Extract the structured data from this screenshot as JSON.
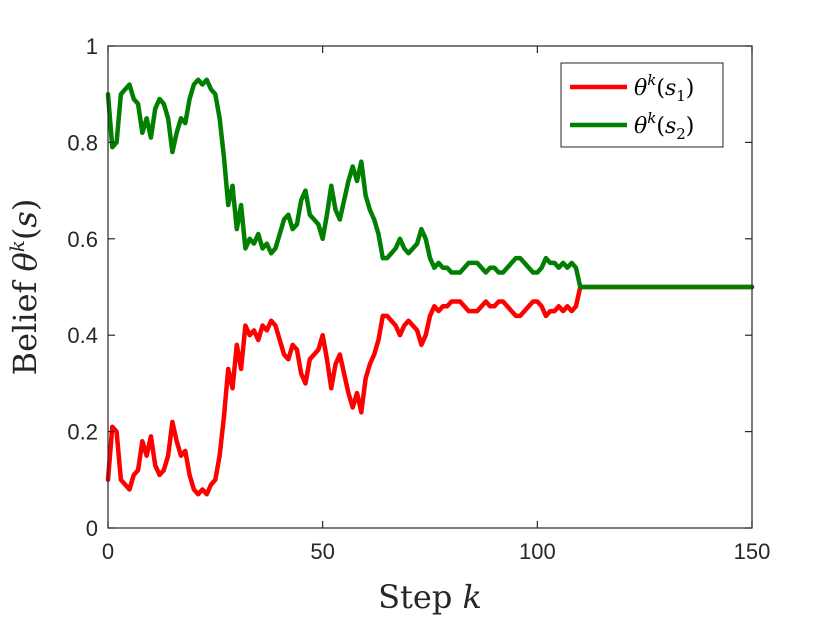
{
  "chart_data": {
    "type": "line",
    "xlabel": "Step k",
    "ylabel": "Belief θ^k(s)",
    "xlim": [
      0,
      150
    ],
    "ylim": [
      0,
      1
    ],
    "x_ticks": [
      0,
      50,
      100,
      150
    ],
    "y_ticks": [
      0,
      0.2,
      0.4,
      0.6,
      0.8,
      1
    ],
    "x_tick_labels": [
      "0",
      "50",
      "100",
      "150"
    ],
    "y_tick_labels": [
      "0",
      "0.2",
      "0.4",
      "0.6",
      "0.8",
      "1"
    ],
    "grid": false,
    "legend_position": "top-right",
    "x": [
      0,
      1,
      2,
      3,
      4,
      5,
      6,
      7,
      8,
      9,
      10,
      11,
      12,
      13,
      14,
      15,
      16,
      17,
      18,
      19,
      20,
      21,
      22,
      23,
      24,
      25,
      26,
      27,
      28,
      29,
      30,
      31,
      32,
      33,
      34,
      35,
      36,
      37,
      38,
      39,
      40,
      41,
      42,
      43,
      44,
      45,
      46,
      47,
      48,
      49,
      50,
      51,
      52,
      53,
      54,
      55,
      56,
      57,
      58,
      59,
      60,
      61,
      62,
      63,
      64,
      65,
      66,
      67,
      68,
      69,
      70,
      71,
      72,
      73,
      74,
      75,
      76,
      77,
      78,
      79,
      80,
      81,
      82,
      83,
      84,
      85,
      86,
      87,
      88,
      89,
      90,
      91,
      92,
      93,
      94,
      95,
      96,
      97,
      98,
      99,
      100,
      101,
      102,
      103,
      104,
      105,
      106,
      107,
      108,
      109,
      110,
      115,
      120,
      125,
      130,
      135,
      140,
      145,
      150
    ],
    "series": [
      {
        "name": "θ^k(s_1)",
        "color": "#ff0000",
        "values": [
          0.1,
          0.21,
          0.2,
          0.1,
          0.09,
          0.08,
          0.11,
          0.12,
          0.18,
          0.15,
          0.19,
          0.13,
          0.11,
          0.12,
          0.15,
          0.22,
          0.18,
          0.15,
          0.16,
          0.11,
          0.08,
          0.07,
          0.08,
          0.07,
          0.09,
          0.1,
          0.15,
          0.23,
          0.33,
          0.29,
          0.38,
          0.33,
          0.42,
          0.4,
          0.41,
          0.39,
          0.42,
          0.41,
          0.43,
          0.42,
          0.39,
          0.36,
          0.35,
          0.38,
          0.37,
          0.32,
          0.3,
          0.35,
          0.36,
          0.37,
          0.4,
          0.35,
          0.29,
          0.34,
          0.36,
          0.32,
          0.28,
          0.25,
          0.28,
          0.24,
          0.31,
          0.34,
          0.36,
          0.39,
          0.44,
          0.44,
          0.43,
          0.42,
          0.4,
          0.42,
          0.43,
          0.42,
          0.41,
          0.38,
          0.4,
          0.44,
          0.46,
          0.45,
          0.46,
          0.46,
          0.47,
          0.47,
          0.47,
          0.46,
          0.45,
          0.45,
          0.45,
          0.46,
          0.47,
          0.46,
          0.46,
          0.47,
          0.47,
          0.46,
          0.45,
          0.44,
          0.44,
          0.45,
          0.46,
          0.47,
          0.47,
          0.46,
          0.44,
          0.45,
          0.45,
          0.46,
          0.45,
          0.46,
          0.45,
          0.46,
          0.5,
          0.5,
          0.5,
          0.5,
          0.5,
          0.5,
          0.5,
          0.5,
          0.5
        ]
      },
      {
        "name": "θ^k(s_2)",
        "color": "#007f00",
        "values": [
          0.9,
          0.79,
          0.8,
          0.9,
          0.91,
          0.92,
          0.89,
          0.88,
          0.82,
          0.85,
          0.81,
          0.87,
          0.89,
          0.88,
          0.85,
          0.78,
          0.82,
          0.85,
          0.84,
          0.89,
          0.92,
          0.93,
          0.92,
          0.93,
          0.91,
          0.9,
          0.85,
          0.77,
          0.67,
          0.71,
          0.62,
          0.67,
          0.58,
          0.6,
          0.59,
          0.61,
          0.58,
          0.59,
          0.57,
          0.58,
          0.61,
          0.64,
          0.65,
          0.62,
          0.63,
          0.68,
          0.7,
          0.65,
          0.64,
          0.63,
          0.6,
          0.65,
          0.71,
          0.66,
          0.64,
          0.68,
          0.72,
          0.75,
          0.72,
          0.76,
          0.69,
          0.66,
          0.64,
          0.61,
          0.56,
          0.56,
          0.57,
          0.58,
          0.6,
          0.58,
          0.57,
          0.58,
          0.59,
          0.62,
          0.6,
          0.56,
          0.54,
          0.55,
          0.54,
          0.54,
          0.53,
          0.53,
          0.53,
          0.54,
          0.55,
          0.55,
          0.55,
          0.54,
          0.53,
          0.54,
          0.54,
          0.53,
          0.53,
          0.54,
          0.55,
          0.56,
          0.56,
          0.55,
          0.54,
          0.53,
          0.53,
          0.54,
          0.56,
          0.55,
          0.55,
          0.54,
          0.55,
          0.54,
          0.55,
          0.54,
          0.5,
          0.5,
          0.5,
          0.5,
          0.5,
          0.5,
          0.5,
          0.5,
          0.5
        ]
      }
    ]
  }
}
